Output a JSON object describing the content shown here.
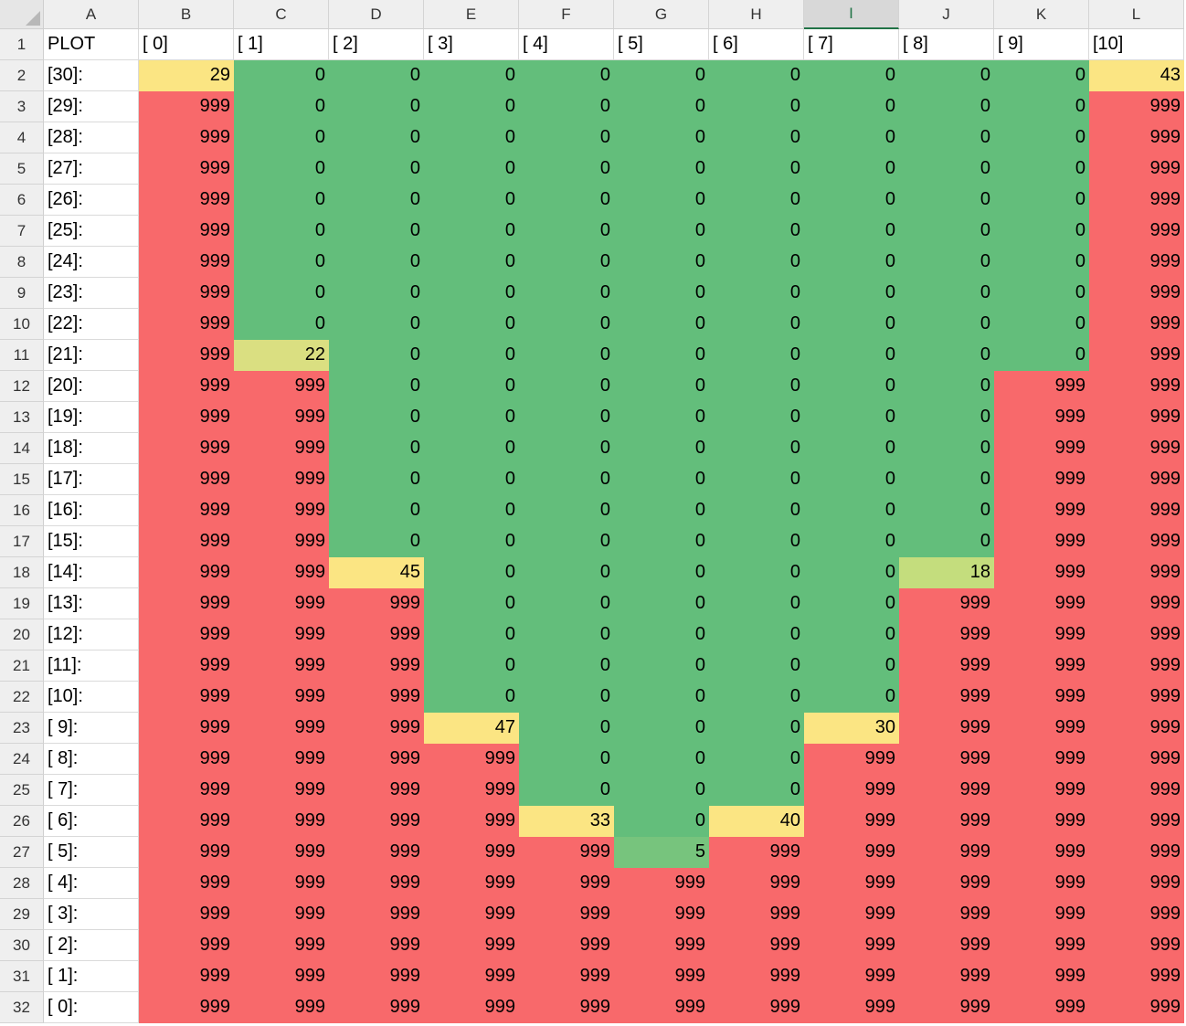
{
  "columns": [
    "A",
    "B",
    "C",
    "D",
    "E",
    "F",
    "G",
    "H",
    "I",
    "J",
    "K",
    "L"
  ],
  "selected_column": "I",
  "header_row": [
    "PLOT",
    "[ 0]",
    "[ 1]",
    "[ 2]",
    "[ 3]",
    "[ 4]",
    "[ 5]",
    "[ 6]",
    "[ 7]",
    "[ 8]",
    "[ 9]",
    "[10]"
  ],
  "colors": {
    "zero": "#63be7b",
    "high": "#f8696b",
    "five": "#77c47d",
    "eighteen": "#c4dd7d",
    "twentytwo": "#dadf81",
    "warm": "#fbe583"
  },
  "rows": [
    {
      "label": "[30]:",
      "values": [
        "29",
        "0",
        "0",
        "0",
        "0",
        "0",
        "0",
        "0",
        "0",
        "0",
        "43"
      ]
    },
    {
      "label": "[29]:",
      "values": [
        "999",
        "0",
        "0",
        "0",
        "0",
        "0",
        "0",
        "0",
        "0",
        "0",
        "999"
      ]
    },
    {
      "label": "[28]:",
      "values": [
        "999",
        "0",
        "0",
        "0",
        "0",
        "0",
        "0",
        "0",
        "0",
        "0",
        "999"
      ]
    },
    {
      "label": "[27]:",
      "values": [
        "999",
        "0",
        "0",
        "0",
        "0",
        "0",
        "0",
        "0",
        "0",
        "0",
        "999"
      ]
    },
    {
      "label": "[26]:",
      "values": [
        "999",
        "0",
        "0",
        "0",
        "0",
        "0",
        "0",
        "0",
        "0",
        "0",
        "999"
      ]
    },
    {
      "label": "[25]:",
      "values": [
        "999",
        "0",
        "0",
        "0",
        "0",
        "0",
        "0",
        "0",
        "0",
        "0",
        "999"
      ]
    },
    {
      "label": "[24]:",
      "values": [
        "999",
        "0",
        "0",
        "0",
        "0",
        "0",
        "0",
        "0",
        "0",
        "0",
        "999"
      ]
    },
    {
      "label": "[23]:",
      "values": [
        "999",
        "0",
        "0",
        "0",
        "0",
        "0",
        "0",
        "0",
        "0",
        "0",
        "999"
      ]
    },
    {
      "label": "[22]:",
      "values": [
        "999",
        "0",
        "0",
        "0",
        "0",
        "0",
        "0",
        "0",
        "0",
        "0",
        "999"
      ]
    },
    {
      "label": "[21]:",
      "values": [
        "999",
        "22",
        "0",
        "0",
        "0",
        "0",
        "0",
        "0",
        "0",
        "0",
        "999"
      ]
    },
    {
      "label": "[20]:",
      "values": [
        "999",
        "999",
        "0",
        "0",
        "0",
        "0",
        "0",
        "0",
        "0",
        "999",
        "999"
      ]
    },
    {
      "label": "[19]:",
      "values": [
        "999",
        "999",
        "0",
        "0",
        "0",
        "0",
        "0",
        "0",
        "0",
        "999",
        "999"
      ]
    },
    {
      "label": "[18]:",
      "values": [
        "999",
        "999",
        "0",
        "0",
        "0",
        "0",
        "0",
        "0",
        "0",
        "999",
        "999"
      ]
    },
    {
      "label": "[17]:",
      "values": [
        "999",
        "999",
        "0",
        "0",
        "0",
        "0",
        "0",
        "0",
        "0",
        "999",
        "999"
      ]
    },
    {
      "label": "[16]:",
      "values": [
        "999",
        "999",
        "0",
        "0",
        "0",
        "0",
        "0",
        "0",
        "0",
        "999",
        "999"
      ]
    },
    {
      "label": "[15]:",
      "values": [
        "999",
        "999",
        "0",
        "0",
        "0",
        "0",
        "0",
        "0",
        "0",
        "999",
        "999"
      ]
    },
    {
      "label": "[14]:",
      "values": [
        "999",
        "999",
        "45",
        "0",
        "0",
        "0",
        "0",
        "0",
        "18",
        "999",
        "999"
      ]
    },
    {
      "label": "[13]:",
      "values": [
        "999",
        "999",
        "999",
        "0",
        "0",
        "0",
        "0",
        "0",
        "999",
        "999",
        "999"
      ]
    },
    {
      "label": "[12]:",
      "values": [
        "999",
        "999",
        "999",
        "0",
        "0",
        "0",
        "0",
        "0",
        "999",
        "999",
        "999"
      ]
    },
    {
      "label": "[11]:",
      "values": [
        "999",
        "999",
        "999",
        "0",
        "0",
        "0",
        "0",
        "0",
        "999",
        "999",
        "999"
      ]
    },
    {
      "label": "[10]:",
      "values": [
        "999",
        "999",
        "999",
        "0",
        "0",
        "0",
        "0",
        "0",
        "999",
        "999",
        "999"
      ]
    },
    {
      "label": "[ 9]:",
      "values": [
        "999",
        "999",
        "999",
        "47",
        "0",
        "0",
        "0",
        "30",
        "999",
        "999",
        "999"
      ]
    },
    {
      "label": "[ 8]:",
      "values": [
        "999",
        "999",
        "999",
        "999",
        "0",
        "0",
        "0",
        "999",
        "999",
        "999",
        "999"
      ]
    },
    {
      "label": "[ 7]:",
      "values": [
        "999",
        "999",
        "999",
        "999",
        "0",
        "0",
        "0",
        "999",
        "999",
        "999",
        "999"
      ]
    },
    {
      "label": "[ 6]:",
      "values": [
        "999",
        "999",
        "999",
        "999",
        "33",
        "0",
        "40",
        "999",
        "999",
        "999",
        "999"
      ]
    },
    {
      "label": "[ 5]:",
      "values": [
        "999",
        "999",
        "999",
        "999",
        "999",
        "5",
        "999",
        "999",
        "999",
        "999",
        "999"
      ]
    },
    {
      "label": "[ 4]:",
      "values": [
        "999",
        "999",
        "999",
        "999",
        "999",
        "999",
        "999",
        "999",
        "999",
        "999",
        "999"
      ]
    },
    {
      "label": "[ 3]:",
      "values": [
        "999",
        "999",
        "999",
        "999",
        "999",
        "999",
        "999",
        "999",
        "999",
        "999",
        "999"
      ]
    },
    {
      "label": "[ 2]:",
      "values": [
        "999",
        "999",
        "999",
        "999",
        "999",
        "999",
        "999",
        "999",
        "999",
        "999",
        "999"
      ]
    },
    {
      "label": "[ 1]:",
      "values": [
        "999",
        "999",
        "999",
        "999",
        "999",
        "999",
        "999",
        "999",
        "999",
        "999",
        "999"
      ]
    },
    {
      "label": "[ 0]:",
      "values": [
        "999",
        "999",
        "999",
        "999",
        "999",
        "999",
        "999",
        "999",
        "999",
        "999",
        "999"
      ]
    }
  ]
}
